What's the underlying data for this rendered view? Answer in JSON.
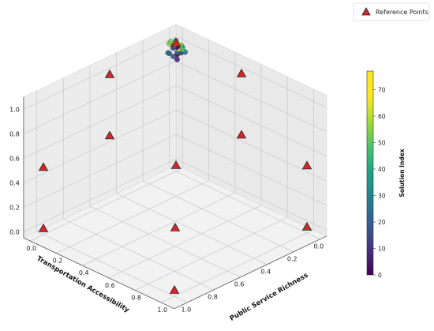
{
  "chart_data": {
    "type": "scatter",
    "projection": "3d",
    "xlabel": "Public Service Richness",
    "ylabel": "Transportation Accessibility",
    "zlabel": "",
    "xlim": [
      0,
      1
    ],
    "ylim": [
      0,
      1
    ],
    "zlim": [
      0,
      1
    ],
    "x_ticks": [
      "0.0",
      "0.2",
      "0.4",
      "0.6",
      "0.8",
      "1.0"
    ],
    "y_ticks": [
      "0.0",
      "0.2",
      "0.4",
      "0.6",
      "0.8",
      "1.0"
    ],
    "z_ticks": [
      "0.0",
      "0.2",
      "0.4",
      "0.6",
      "0.8",
      "1.0"
    ],
    "grid": true,
    "legend": {
      "placement": "top-right",
      "entries": [
        "Reference Points"
      ]
    },
    "reference_points": {
      "name": "Reference Points",
      "marker": "triangle",
      "color": "#d62728",
      "points": [
        {
          "x": 1.0,
          "y": 1.0,
          "z": 0.0
        },
        {
          "x": 1.0,
          "y": 0.0,
          "z": 0.0
        },
        {
          "x": 0.0,
          "y": 1.0,
          "z": 0.0
        },
        {
          "x": 0.0,
          "y": 0.0,
          "z": 0.0
        },
        {
          "x": 0.5,
          "y": 0.5,
          "z": 0.0
        },
        {
          "x": 0.0,
          "y": 0.0,
          "z": 1.0
        },
        {
          "x": 0.5,
          "y": 0.0,
          "z": 0.5
        },
        {
          "x": 0.0,
          "y": 0.5,
          "z": 0.5
        },
        {
          "x": 1.0,
          "y": 0.0,
          "z": 0.5
        },
        {
          "x": 0.0,
          "y": 1.0,
          "z": 0.5
        },
        {
          "x": 0.5,
          "y": 0.0,
          "z": 1.0
        },
        {
          "x": 0.0,
          "y": 0.5,
          "z": 1.0
        }
      ]
    },
    "solutions": {
      "color_by": "Solution Index",
      "colormap": "viridis",
      "cmin": 0,
      "cmax": 77,
      "points": [
        {
          "x": 0.04,
          "y": 0.03,
          "z": 0.94,
          "c": 5
        },
        {
          "x": 0.06,
          "y": 0.02,
          "z": 0.96,
          "c": 12
        },
        {
          "x": 0.03,
          "y": 0.05,
          "z": 0.93,
          "c": 20
        },
        {
          "x": 0.07,
          "y": 0.06,
          "z": 0.99,
          "c": 28
        },
        {
          "x": 0.02,
          "y": 0.08,
          "z": 0.97,
          "c": 35
        },
        {
          "x": 0.08,
          "y": 0.03,
          "z": 1.02,
          "c": 42
        },
        {
          "x": 0.05,
          "y": 0.07,
          "z": 1.03,
          "c": 50
        },
        {
          "x": 0.09,
          "y": 0.05,
          "z": 1.05,
          "c": 58
        },
        {
          "x": 0.04,
          "y": 0.09,
          "z": 1.06,
          "c": 65
        },
        {
          "x": 0.1,
          "y": 0.08,
          "z": 1.08,
          "c": 72
        },
        {
          "x": 0.06,
          "y": 0.04,
          "z": 1.0,
          "c": 76
        },
        {
          "x": 0.03,
          "y": 0.02,
          "z": 0.99,
          "c": 2
        },
        {
          "x": 0.07,
          "y": 0.09,
          "z": 1.04,
          "c": 15
        },
        {
          "x": 0.01,
          "y": 0.06,
          "z": 0.95,
          "c": 24
        },
        {
          "x": 0.09,
          "y": 0.02,
          "z": 0.98,
          "c": 31
        },
        {
          "x": 0.05,
          "y": 0.05,
          "z": 1.07,
          "c": 47
        },
        {
          "x": 0.11,
          "y": 0.06,
          "z": 1.03,
          "c": 55
        },
        {
          "x": 0.02,
          "y": 0.03,
          "z": 1.01,
          "c": 68
        },
        {
          "x": 0.08,
          "y": 0.07,
          "z": 0.94,
          "c": 9
        },
        {
          "x": 0.06,
          "y": 0.1,
          "z": 1.09,
          "c": 61
        }
      ]
    },
    "colorbar": {
      "label": "Solution Index",
      "min": 0,
      "max": 77,
      "ticks": [
        "0",
        "10",
        "20",
        "30",
        "40",
        "50",
        "60",
        "70"
      ]
    }
  }
}
